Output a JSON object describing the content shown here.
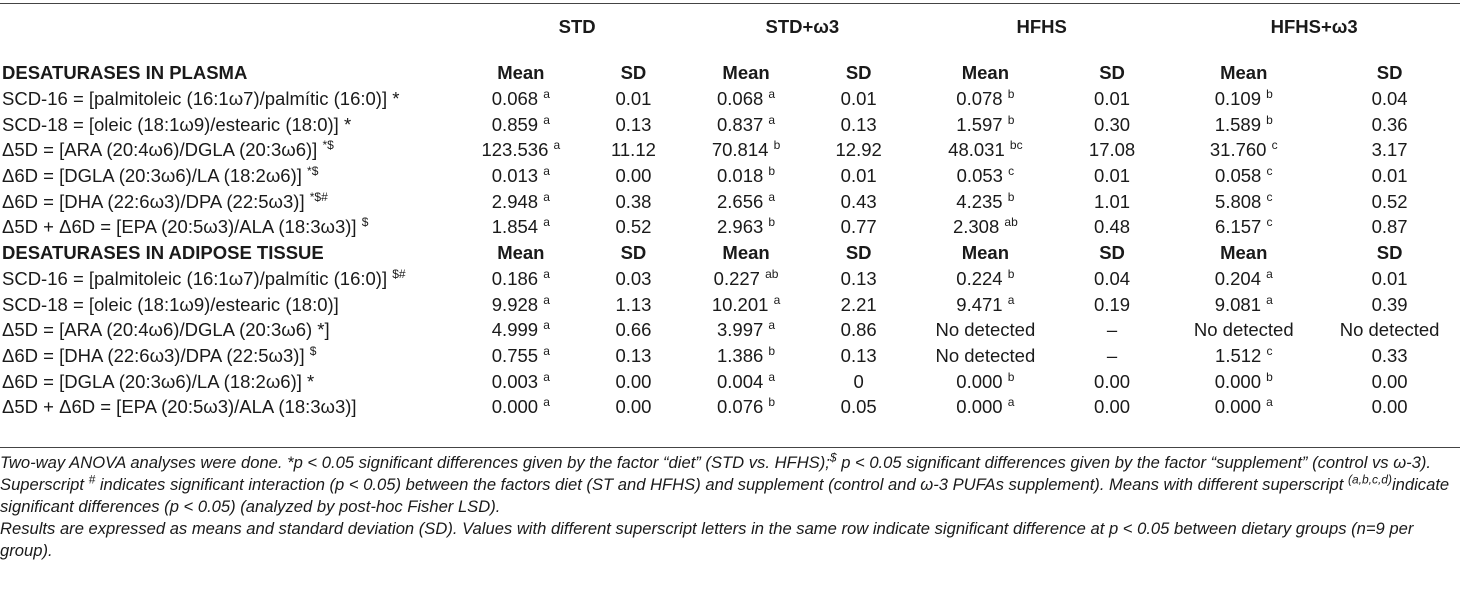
{
  "groups": [
    "STD",
    "STD+ω3",
    "HFHS",
    "HFHS+ω3"
  ],
  "sections": [
    {
      "title": "DESATURASES IN PLASMA",
      "stat_labels": [
        "Mean",
        "SD"
      ],
      "rows": [
        {
          "label": "SCD-16 = [palmitoleic (16:1ω7)/palmític (16:0)]",
          "sym": "*",
          "cells": [
            {
              "v": "0.068",
              "s": "a"
            },
            {
              "v": "0.01"
            },
            {
              "v": "0.068",
              "s": "a"
            },
            {
              "v": "0.01"
            },
            {
              "v": "0.078",
              "s": "b"
            },
            {
              "v": "0.01"
            },
            {
              "v": "0.109",
              "s": "b"
            },
            {
              "v": "0.04"
            }
          ]
        },
        {
          "label": "SCD-18 = [oleic (18:1ω9)/estearic (18:0)]",
          "sym": "*",
          "cells": [
            {
              "v": "0.859",
              "s": "a"
            },
            {
              "v": "0.13"
            },
            {
              "v": "0.837",
              "s": "a"
            },
            {
              "v": "0.13"
            },
            {
              "v": "1.597",
              "s": "b"
            },
            {
              "v": "0.30"
            },
            {
              "v": "1.589",
              "s": "b"
            },
            {
              "v": "0.36"
            }
          ]
        },
        {
          "label": "Δ5D = [ARA (20:4ω6)/DGLA (20:3ω6)]",
          "sup": "*$",
          "cells": [
            {
              "v": "123.536",
              "s": "a"
            },
            {
              "v": "11.12"
            },
            {
              "v": "70.814",
              "s": "b"
            },
            {
              "v": "12.92"
            },
            {
              "v": "48.031",
              "s": "bc"
            },
            {
              "v": "17.08"
            },
            {
              "v": "31.760",
              "s": "c"
            },
            {
              "v": "3.17"
            }
          ]
        },
        {
          "label": "Δ6D = [DGLA (20:3ω6)/LA (18:2ω6)]",
          "sup": "*$",
          "cells": [
            {
              "v": "0.013",
              "s": "a"
            },
            {
              "v": "0.00"
            },
            {
              "v": "0.018",
              "s": "b"
            },
            {
              "v": "0.01"
            },
            {
              "v": "0.053",
              "s": "c"
            },
            {
              "v": "0.01"
            },
            {
              "v": "0.058",
              "s": "c"
            },
            {
              "v": "0.01"
            }
          ]
        },
        {
          "label": "Δ6D = [DHA (22:6ω3)/DPA (22:5ω3)]",
          "sup": "*$#",
          "cells": [
            {
              "v": "2.948",
              "s": "a"
            },
            {
              "v": "0.38"
            },
            {
              "v": "2.656",
              "s": "a"
            },
            {
              "v": "0.43"
            },
            {
              "v": "4.235",
              "s": "b"
            },
            {
              "v": "1.01"
            },
            {
              "v": "5.808",
              "s": "c"
            },
            {
              "v": "0.52"
            }
          ]
        },
        {
          "label": "Δ5D + Δ6D = [EPA (20:5ω3)/ALA (18:3ω3)]",
          "sup": "$",
          "cells": [
            {
              "v": "1.854",
              "s": "a"
            },
            {
              "v": "0.52"
            },
            {
              "v": "2.963",
              "s": "b"
            },
            {
              "v": "0.77"
            },
            {
              "v": "2.308",
              "s": "ab"
            },
            {
              "v": "0.48"
            },
            {
              "v": "6.157",
              "s": "c"
            },
            {
              "v": "0.87"
            }
          ]
        }
      ]
    },
    {
      "title": "DESATURASES IN ADIPOSE TISSUE",
      "stat_labels": [
        "Mean",
        "SD"
      ],
      "rows": [
        {
          "label": "SCD-16 = [palmitoleic (16:1ω7)/palmític (16:0)]",
          "sup": "$#",
          "cells": [
            {
              "v": "0.186",
              "s": "a"
            },
            {
              "v": "0.03"
            },
            {
              "v": "0.227",
              "s": "ab"
            },
            {
              "v": "0.13"
            },
            {
              "v": "0.224",
              "s": "b"
            },
            {
              "v": "0.04"
            },
            {
              "v": "0.204",
              "s": "a"
            },
            {
              "v": "0.01"
            }
          ]
        },
        {
          "label": "SCD-18 = [oleic (18:1ω9)/estearic (18:0)]",
          "cells": [
            {
              "v": "9.928",
              "s": "a"
            },
            {
              "v": "1.13"
            },
            {
              "v": "10.201",
              "s": "a"
            },
            {
              "v": "2.21"
            },
            {
              "v": "9.471",
              "s": "a"
            },
            {
              "v": "0.19"
            },
            {
              "v": "9.081",
              "s": "a"
            },
            {
              "v": "0.39"
            }
          ]
        },
        {
          "label": "Δ5D = [ARA (20:4ω6)/DGLA (20:3ω6) *]",
          "cells": [
            {
              "v": "4.999",
              "s": "a"
            },
            {
              "v": "0.66"
            },
            {
              "v": "3.997",
              "s": "a"
            },
            {
              "v": "0.86"
            },
            {
              "v": "No detected"
            },
            {
              "v": "–"
            },
            {
              "v": "No detected"
            },
            {
              "v": "No detected"
            }
          ]
        },
        {
          "label": "Δ6D = [DHA (22:6ω3)/DPA (22:5ω3)]",
          "sup": "$",
          "cells": [
            {
              "v": "0.755",
              "s": "a"
            },
            {
              "v": "0.13"
            },
            {
              "v": "1.386",
              "s": "b"
            },
            {
              "v": "0.13"
            },
            {
              "v": "No detected"
            },
            {
              "v": "–"
            },
            {
              "v": "1.512",
              "s": "c"
            },
            {
              "v": "0.33"
            }
          ]
        },
        {
          "label": "Δ6D = [DGLA (20:3ω6)/LA (18:2ω6)]",
          "sym": "*",
          "cells": [
            {
              "v": "0.003",
              "s": "a"
            },
            {
              "v": "0.00"
            },
            {
              "v": "0.004",
              "s": "a"
            },
            {
              "v": "0"
            },
            {
              "v": "0.000",
              "s": "b"
            },
            {
              "v": "0.00"
            },
            {
              "v": "0.000",
              "s": "b"
            },
            {
              "v": "0.00"
            }
          ]
        },
        {
          "label": "Δ5D + Δ6D = [EPA (20:5ω3)/ALA (18:3ω3)]",
          "cells": [
            {
              "v": "0.000",
              "s": "a"
            },
            {
              "v": "0.00"
            },
            {
              "v": "0.076",
              "s": "b"
            },
            {
              "v": "0.05"
            },
            {
              "v": "0.000",
              "s": "a"
            },
            {
              "v": "0.00"
            },
            {
              "v": "0.000",
              "s": "a"
            },
            {
              "v": "0.00"
            }
          ]
        }
      ]
    }
  ],
  "footnotes": {
    "p1": {
      "a": "Two-way ANOVA analyses were done. *p < 0.05 significant differences given by the factor “diet” (STD vs. HFHS);",
      "a_sup": "$",
      "b": " p < 0.05 significant differences given by the factor “supplement” (control vs ω-3). Superscript",
      "b_sup": "#",
      "c": " indicates significant interaction (p < 0.05) between the factors diet (ST and HFHS) and supplement (control and ω-3 PUFAs supplement). Means with different superscript",
      "c_sup": "(a,b,c,d)",
      "d": "indicate significant differences (p < 0.05) (analyzed by post-hoc Fisher LSD)."
    },
    "p2": "Results are expressed as means and standard deviation (SD). Values with different superscript letters in the same row indicate significant difference at p < 0.05 between dietary groups (n=9 per group)."
  }
}
